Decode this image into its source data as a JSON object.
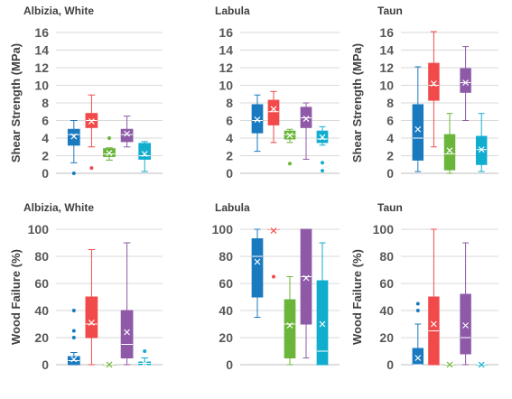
{
  "colors": {
    "series": [
      "#1a7abf",
      "#f24a4a",
      "#6ab53a",
      "#8e5aa8",
      "#11adcf"
    ],
    "grid": "#d9d9d9",
    "axis": "#bfbfbf",
    "text": "#595959",
    "title": "#404040"
  },
  "chart_data": [
    {
      "type": "boxplot",
      "title": "Albizia, White",
      "xlabel": "",
      "ylabel": "Shear Strength (MPa)",
      "ylim": [
        0,
        16
      ],
      "yticks": [
        "0",
        "2",
        "4",
        "6",
        "8",
        "10",
        "12",
        "14",
        "16"
      ],
      "grid": true,
      "boxes": [
        {
          "min": 1.2,
          "q1": 3.2,
          "median": 4.4,
          "q3": 5.0,
          "max": 6.0,
          "mean": 4.2,
          "outliers": [
            0
          ]
        },
        {
          "min": 3.0,
          "q1": 5.2,
          "median": 6.0,
          "q3": 6.8,
          "max": 8.9,
          "mean": 5.9,
          "outliers": [
            0.6
          ]
        },
        {
          "min": 1.5,
          "q1": 1.9,
          "median": 2.2,
          "q3": 2.8,
          "max": 2.9,
          "mean": 2.3,
          "outliers": [
            4
          ]
        },
        {
          "min": 3.0,
          "q1": 3.6,
          "median": 4.4,
          "q3": 5.0,
          "max": 6.5,
          "mean": 4.5,
          "outliers": []
        },
        {
          "min": 0.2,
          "q1": 1.6,
          "median": 2.0,
          "q3": 3.4,
          "max": 3.6,
          "mean": 2.2,
          "outliers": []
        }
      ]
    },
    {
      "type": "boxplot",
      "title": "Labula",
      "xlabel": "",
      "ylabel": "",
      "ylim": [
        0,
        16
      ],
      "yticks": [
        "0",
        "2",
        "4",
        "6",
        "8",
        "10",
        "12",
        "14",
        "16"
      ],
      "grid": true,
      "boxes": [
        {
          "min": 2.5,
          "q1": 4.6,
          "median": 6.0,
          "q3": 7.8,
          "max": 8.9,
          "mean": 6.1,
          "outliers": []
        },
        {
          "min": 3.5,
          "q1": 5.5,
          "median": 7.0,
          "q3": 8.3,
          "max": 9.3,
          "mean": 7.3,
          "outliers": []
        },
        {
          "min": 3.5,
          "q1": 3.9,
          "median": 4.4,
          "q3": 4.8,
          "max": 5.0,
          "mean": 4.3,
          "outliers": [
            1.1
          ]
        },
        {
          "min": 1.6,
          "q1": 5.2,
          "median": 6.3,
          "q3": 7.5,
          "max": 8.0,
          "mean": 6.2,
          "outliers": []
        },
        {
          "min": 3.2,
          "q1": 3.5,
          "median": 3.9,
          "q3": 4.8,
          "max": 5.3,
          "mean": 4.1,
          "outliers": [
            1.2,
            0.3
          ]
        }
      ]
    },
    {
      "type": "boxplot",
      "title": "Taun",
      "xlabel": "",
      "ylabel": "Shear Strength (MPa)",
      "ylim": [
        0,
        16
      ],
      "yticks": [
        "0",
        "2",
        "4",
        "6",
        "8",
        "10",
        "12",
        "14",
        "16"
      ],
      "grid": true,
      "boxes": [
        {
          "min": 0.2,
          "q1": 1.5,
          "median": 4.0,
          "q3": 7.8,
          "max": 12.1,
          "mean": 5.0,
          "outliers": []
        },
        {
          "min": 3.0,
          "q1": 8.3,
          "median": 10.0,
          "q3": 12.5,
          "max": 16.1,
          "mean": 10.2,
          "outliers": []
        },
        {
          "min": 0.0,
          "q1": 0.4,
          "median": 2.2,
          "q3": 4.4,
          "max": 6.8,
          "mean": 2.6,
          "outliers": []
        },
        {
          "min": 6.0,
          "q1": 9.2,
          "median": 10.3,
          "q3": 11.9,
          "max": 14.4,
          "mean": 10.3,
          "outliers": []
        },
        {
          "min": 0.2,
          "q1": 1.0,
          "median": 2.7,
          "q3": 4.2,
          "max": 6.8,
          "mean": 2.7,
          "outliers": []
        }
      ]
    },
    {
      "type": "boxplot",
      "title": "Albizia, White",
      "xlabel": "",
      "ylabel": "Wood Failure (%)",
      "ylim": [
        0,
        100
      ],
      "yticks": [
        "0",
        "20",
        "40",
        "60",
        "80",
        "100"
      ],
      "grid": true,
      "boxes": [
        {
          "min": 0,
          "q1": 0,
          "median": 3,
          "q3": 6,
          "max": 9,
          "mean": 4,
          "outliers": [
            40,
            25,
            20
          ]
        },
        {
          "min": 0,
          "q1": 20,
          "median": 30,
          "q3": 50,
          "max": 85,
          "mean": 31,
          "outliers": []
        },
        {
          "min": 0,
          "q1": 0,
          "median": 0,
          "q3": 0,
          "max": 0,
          "mean": 0,
          "outliers": []
        },
        {
          "min": 0,
          "q1": 5,
          "median": 15,
          "q3": 40,
          "max": 90,
          "mean": 24,
          "outliers": []
        },
        {
          "min": 0,
          "q1": 0,
          "median": 1,
          "q3": 2,
          "max": 5,
          "mean": 1,
          "outliers": [
            10
          ]
        }
      ]
    },
    {
      "type": "boxplot",
      "title": "Labula",
      "xlabel": "",
      "ylabel": "",
      "ylim": [
        0,
        100
      ],
      "yticks": [
        "0",
        "20",
        "40",
        "60",
        "80",
        "100"
      ],
      "grid": true,
      "boxes": [
        {
          "min": 35,
          "q1": 50,
          "median": 80,
          "q3": 93,
          "max": 100,
          "mean": 76,
          "outliers": []
        },
        {
          "min": 100,
          "q1": 100,
          "median": 100,
          "q3": 100,
          "max": 100,
          "mean": 99,
          "outliers": [
            65
          ]
        },
        {
          "min": 0,
          "q1": 5,
          "median": 30,
          "q3": 48,
          "max": 65,
          "mean": 29,
          "outliers": []
        },
        {
          "min": 5,
          "q1": 30,
          "median": 65,
          "q3": 100,
          "max": 100,
          "mean": 64,
          "outliers": []
        },
        {
          "min": 0,
          "q1": 0,
          "median": 10,
          "q3": 62,
          "max": 90,
          "mean": 30,
          "outliers": []
        }
      ]
    },
    {
      "type": "boxplot",
      "title": "Taun",
      "xlabel": "",
      "ylabel": "Wood Failure (%)",
      "ylim": [
        0,
        100
      ],
      "yticks": [
        "0",
        "20",
        "40",
        "60",
        "80",
        "100"
      ],
      "grid": true,
      "boxes": [
        {
          "min": 0,
          "q1": 0,
          "median": 0,
          "q3": 12,
          "max": 30,
          "mean": 5,
          "outliers": [
            45,
            40
          ]
        },
        {
          "min": 0,
          "q1": 0,
          "median": 25,
          "q3": 50,
          "max": 100,
          "mean": 30,
          "outliers": []
        },
        {
          "min": 0,
          "q1": 0,
          "median": 0,
          "q3": 0,
          "max": 0,
          "mean": 0,
          "outliers": []
        },
        {
          "min": 0,
          "q1": 8,
          "median": 20,
          "q3": 52,
          "max": 90,
          "mean": 29,
          "outliers": []
        },
        {
          "min": 0,
          "q1": 0,
          "median": 0,
          "q3": 0,
          "max": 0,
          "mean": 0,
          "outliers": []
        }
      ]
    }
  ]
}
